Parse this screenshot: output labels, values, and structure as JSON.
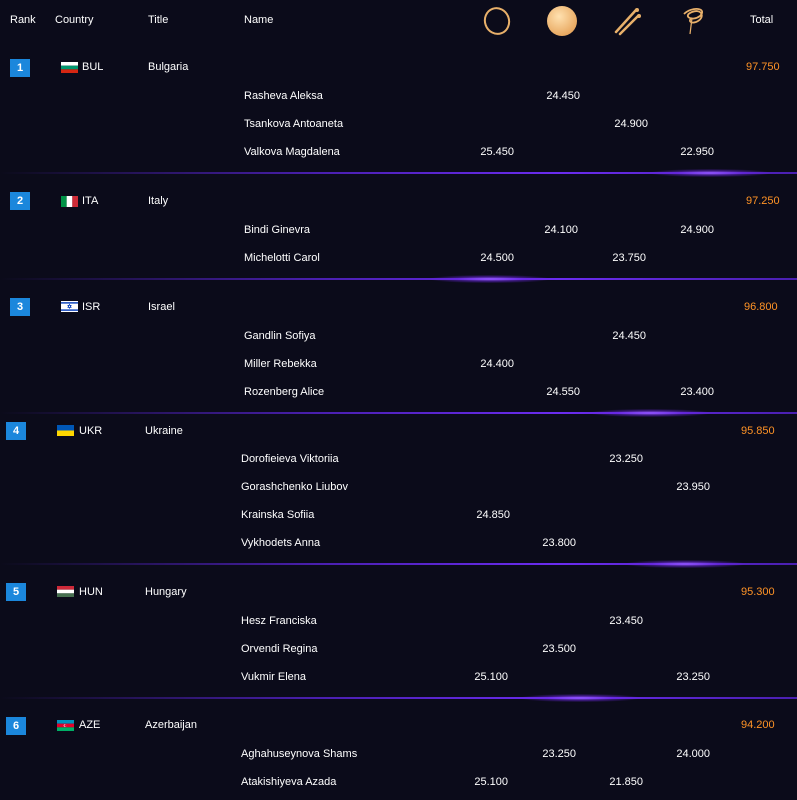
{
  "header": {
    "rank": "Rank",
    "country": "Country",
    "title": "Title",
    "name": "Name",
    "total": "Total",
    "apparatus_icons": [
      "hoop-icon",
      "ball-icon",
      "clubs-icon",
      "ribbon-icon"
    ]
  },
  "colors": {
    "accent": "#1b87dc",
    "total": "#ff9326",
    "divider": "#6b2cf0",
    "background": "#0b0b1a"
  },
  "groups": [
    {
      "rank": "1",
      "code": "BUL",
      "country": "Bulgaria",
      "total": "97.750",
      "athletes": [
        {
          "name": "Rasheva Aleksa",
          "scores": [
            "",
            "24.450",
            "",
            ""
          ]
        },
        {
          "name": "Tsankova Antoaneta",
          "scores": [
            "",
            "",
            "24.900",
            ""
          ]
        },
        {
          "name": "Valkova Magdalena",
          "scores": [
            "25.450",
            "",
            "",
            "22.950"
          ]
        }
      ]
    },
    {
      "rank": "2",
      "code": "ITA",
      "country": "Italy",
      "total": "97.250",
      "athletes": [
        {
          "name": "Bindi Ginevra",
          "scores": [
            "",
            "24.100",
            "",
            "24.900"
          ]
        },
        {
          "name": "Michelotti Carol",
          "scores": [
            "24.500",
            "",
            "23.750",
            ""
          ]
        }
      ]
    },
    {
      "rank": "3",
      "code": "ISR",
      "country": "Israel",
      "total": "96.800",
      "athletes": [
        {
          "name": "Gandlin Sofiya",
          "scores": [
            "",
            "",
            "24.450",
            ""
          ]
        },
        {
          "name": "Miller Rebekka",
          "scores": [
            "24.400",
            "",
            "",
            ""
          ]
        },
        {
          "name": "Rozenberg Alice",
          "scores": [
            "",
            "24.550",
            "",
            "23.400"
          ]
        }
      ]
    },
    {
      "rank": "4",
      "code": "UKR",
      "country": "Ukraine",
      "total": "95.850",
      "athletes": [
        {
          "name": "Dorofieieva Viktoriia",
          "scores": [
            "",
            "",
            "23.250",
            ""
          ]
        },
        {
          "name": "Gorashchenko Liubov",
          "scores": [
            "",
            "",
            "",
            "23.950"
          ]
        },
        {
          "name": "Krainska Sofiia",
          "scores": [
            "24.850",
            "",
            "",
            ""
          ]
        },
        {
          "name": "Vykhodets Anna",
          "scores": [
            "",
            "23.800",
            "",
            ""
          ]
        }
      ]
    },
    {
      "rank": "5",
      "code": "HUN",
      "country": "Hungary",
      "total": "95.300",
      "athletes": [
        {
          "name": "Hesz Franciska",
          "scores": [
            "",
            "",
            "23.450",
            ""
          ]
        },
        {
          "name": "Orvendi Regina",
          "scores": [
            "",
            "23.500",
            "",
            ""
          ]
        },
        {
          "name": "Vukmir Elena",
          "scores": [
            "25.100",
            "",
            "",
            "23.250"
          ]
        }
      ]
    },
    {
      "rank": "6",
      "code": "AZE",
      "country": "Azerbaijan",
      "total": "94.200",
      "athletes": [
        {
          "name": "Aghahuseynova Shams",
          "scores": [
            "",
            "23.250",
            "",
            "24.000"
          ]
        },
        {
          "name": "Atakishiyeva Azada",
          "scores": [
            "25.100",
            "",
            "21.850",
            ""
          ]
        }
      ]
    }
  ]
}
